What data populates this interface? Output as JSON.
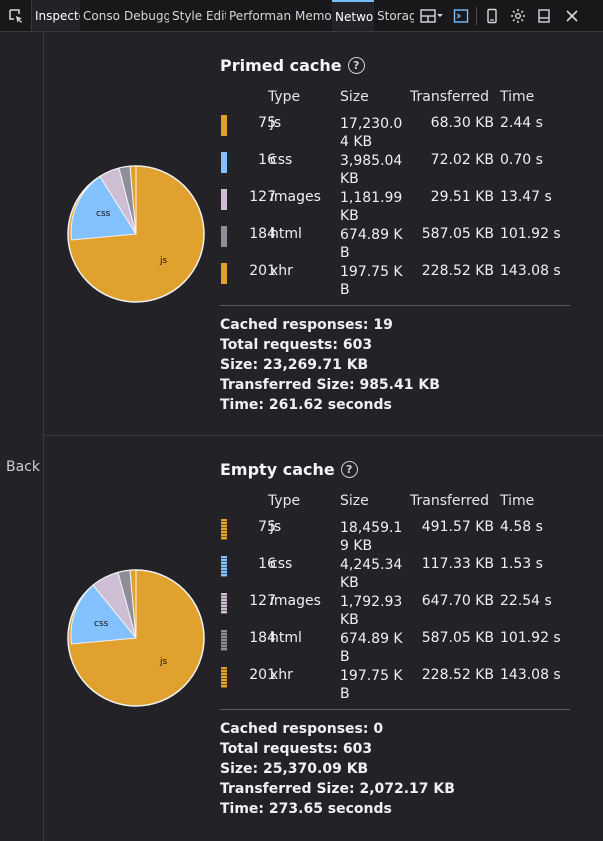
{
  "toolbar": {
    "tabs": [
      {
        "label": "Inspector"
      },
      {
        "label": "Console"
      },
      {
        "label": "Debugger"
      },
      {
        "label": "Style Editor"
      },
      {
        "label": "Performance"
      },
      {
        "label": "Memory"
      },
      {
        "label": "Network"
      },
      {
        "label": "Storage"
      }
    ]
  },
  "back_label": "Back",
  "table_headers": {
    "type": "Type",
    "size": "Size",
    "transferred": "Transferred",
    "time": "Time"
  },
  "primed": {
    "title": "Primed cache",
    "rows": [
      {
        "count": "75",
        "type": "js",
        "size": "17,230.04 KB",
        "transferred": "68.30 KB",
        "time": "2.44 s",
        "color": "#e1a12e"
      },
      {
        "count": "16",
        "type": "css",
        "size": "3,985.04 KB",
        "transferred": "72.02 KB",
        "time": "0.70 s",
        "color": "#84c1ff"
      },
      {
        "count": "127",
        "type": "images",
        "size": "1,181.99 KB",
        "transferred": "29.51 KB",
        "time": "13.47 s",
        "color": "#cdbed4"
      },
      {
        "count": "184",
        "type": "html",
        "size": "674.89 KB",
        "transferred": "587.05 KB",
        "time": "101.92 s",
        "color": "#8d8e99"
      },
      {
        "count": "201",
        "type": "xhr",
        "size": "197.75 KB",
        "transferred": "228.52 KB",
        "time": "143.08 s",
        "color": "#e1a12e"
      }
    ],
    "cached": "Cached responses: 19",
    "total": "Total requests: 603",
    "size": "Size: 23,269.71 KB",
    "transferred": "Transferred Size: 985.41 KB",
    "time": "Time: 261.62 seconds",
    "pie_labels": {
      "js": "js",
      "css": "css"
    }
  },
  "empty": {
    "title": "Empty cache",
    "rows": [
      {
        "count": "75",
        "type": "js",
        "size": "18,459.19 KB",
        "transferred": "491.57 KB",
        "time": "4.58 s",
        "color": "#e1a12e"
      },
      {
        "count": "16",
        "type": "css",
        "size": "4,245.34 KB",
        "transferred": "117.33 KB",
        "time": "1.53 s",
        "color": "#84c1ff"
      },
      {
        "count": "127",
        "type": "images",
        "size": "1,792.93 KB",
        "transferred": "647.70 KB",
        "time": "22.54 s",
        "color": "#cdbed4"
      },
      {
        "count": "184",
        "type": "html",
        "size": "674.89 KB",
        "transferred": "587.05 KB",
        "time": "101.92 s",
        "color": "#8d8e99"
      },
      {
        "count": "201",
        "type": "xhr",
        "size": "197.75 KB",
        "transferred": "228.52 KB",
        "time": "143.08 s",
        "color": "#e1a12e"
      }
    ],
    "cached": "Cached responses: 0",
    "total": "Total requests: 603",
    "size": "Size: 25,370.09 KB",
    "transferred": "Transferred Size: 2,072.17 KB",
    "time": "Time: 273.65 seconds",
    "pie_labels": {
      "js": "js",
      "css": "css"
    }
  }
}
